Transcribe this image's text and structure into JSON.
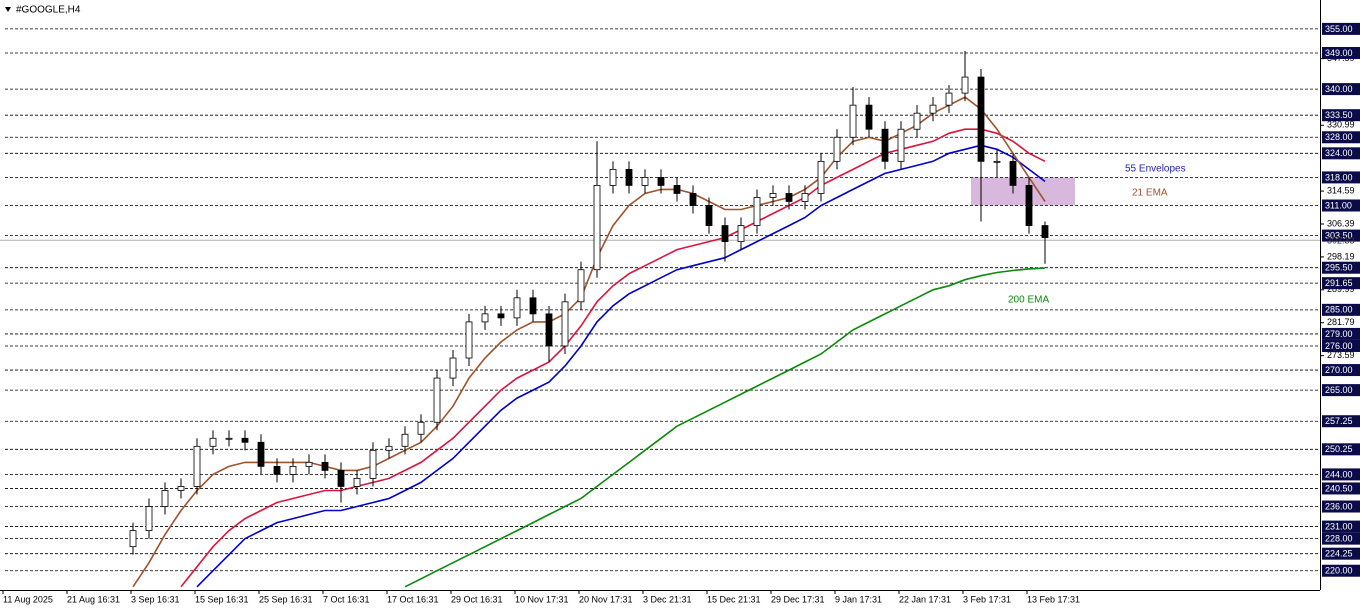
{
  "chart_data": {
    "type": "candlestick",
    "title": "#GOOGLE,H4",
    "x_labels": [
      "11 Aug 2025",
      "21 Aug 16:31",
      "3 Sep 16:31",
      "15 Sep 16:31",
      "25 Sep 16:31",
      "7 Oct 16:31",
      "17 Oct 16:31",
      "29 Oct 16:31",
      "10 Nov 17:31",
      "20 Nov 17:31",
      "3 Dec 21:31",
      "15 Dec 21:31",
      "29 Dec 17:31",
      "9 Jan 17:31",
      "22 Jan 17:31",
      "3 Feb 17:31",
      "13 Feb 17:31"
    ],
    "ylim": [
      215.2,
      362.2
    ],
    "yticks": [
      347.59,
      330.99,
      314.59,
      306.39,
      298.19,
      289.99,
      281.79,
      273.59
    ],
    "levels": [
      {
        "value": 355,
        "label": "355.00"
      },
      {
        "value": 349,
        "label": "349.00"
      },
      {
        "value": 340,
        "label": "340.00"
      },
      {
        "value": 333.5,
        "label": "333.50"
      },
      {
        "value": 328,
        "label": "328.00"
      },
      {
        "value": 324,
        "label": "324.00"
      },
      {
        "value": 318,
        "label": "318.00"
      },
      {
        "value": 311,
        "label": "311.00"
      },
      {
        "value": 303.5,
        "label": "303.50"
      },
      {
        "value": 295.5,
        "label": "295.50"
      },
      291.65,
      {
        "value": 285,
        "label": "285.00"
      },
      {
        "value": 279,
        "label": "279.00"
      },
      {
        "value": 276,
        "label": "276.00"
      },
      {
        "value": 270,
        "label": "270.00"
      },
      {
        "value": 265,
        "label": "265.00"
      },
      257.25,
      250.25,
      {
        "value": 244,
        "label": "244.00"
      },
      {
        "value": 240.5,
        "label": "240.50"
      },
      {
        "value": 236,
        "label": "236.00"
      },
      {
        "value": 231,
        "label": "231.00"
      },
      {
        "value": 228,
        "label": "228.00"
      },
      224.25,
      {
        "value": 220,
        "label": "220.00"
      }
    ],
    "current_price": 302.33,
    "zone": [
      318,
      311
    ],
    "candles": {
      "open": [
        226,
        230,
        236,
        240,
        241,
        251,
        253,
        253,
        252,
        246,
        244,
        246,
        247,
        245,
        241,
        243,
        250,
        251,
        254,
        257,
        268,
        273,
        282,
        284,
        283,
        288,
        284,
        276,
        287,
        295,
        316,
        320,
        316,
        318,
        316,
        314,
        311,
        306,
        302,
        306,
        313,
        314,
        312,
        314,
        322,
        328,
        336,
        330,
        322,
        330,
        334,
        336,
        339,
        343,
        322,
        322,
        316,
        306
      ],
      "high": [
        232,
        238,
        242,
        243,
        253,
        255,
        255,
        255,
        254,
        248,
        248,
        249,
        249,
        247,
        245,
        252,
        253,
        256,
        259,
        270,
        275,
        284,
        286,
        286,
        290,
        290,
        286,
        289,
        297,
        327,
        322,
        322,
        320,
        320,
        318,
        316,
        313,
        308,
        308,
        315,
        316,
        316,
        316,
        324,
        330,
        340.5,
        338,
        332,
        332,
        336,
        338,
        341,
        349.5,
        345,
        325,
        324,
        318,
        307
      ],
      "low": [
        224,
        228,
        234,
        238,
        239,
        249,
        251,
        250,
        244,
        242,
        242,
        244,
        243,
        237,
        239,
        241,
        248,
        249,
        252,
        255,
        266,
        271,
        280,
        281,
        281,
        282,
        272,
        274,
        285,
        293,
        314,
        314,
        314,
        314,
        312,
        309,
        304,
        297,
        300,
        304,
        311,
        310,
        310,
        312,
        320,
        326,
        328,
        320,
        320,
        328,
        332,
        334,
        337,
        307,
        318,
        314,
        304,
        296.5
      ],
      "close": [
        230,
        236,
        240,
        241,
        251,
        253,
        253,
        252,
        246,
        244,
        246,
        247,
        245,
        241,
        243,
        250,
        251,
        254,
        257,
        268,
        273,
        282,
        284,
        283,
        288,
        284,
        276,
        287,
        295,
        316,
        320,
        316,
        318,
        316,
        314,
        311,
        306,
        302,
        306,
        313,
        314,
        312,
        314,
        322,
        328,
        336,
        330,
        322,
        330,
        334,
        336,
        339,
        343,
        322,
        322,
        316,
        306,
        303
      ]
    },
    "indicators": [
      {
        "name": "55 Envelopes",
        "color": "#1f1fa8",
        "bands": [
          {
            "color": "#dc143c",
            "values": [
              null,
              null,
              null,
              216,
              221,
              226,
              230,
              233,
              235,
              237,
              238,
              239,
              240,
              240,
              241,
              242,
              243,
              245,
              247,
              250,
              253,
              257,
              261,
              265,
              268,
              270,
              272,
              276,
              281,
              287,
              291,
              294,
              296,
              298,
              300,
              301,
              302,
              303,
              305,
              307,
              309,
              311,
              313,
              316,
              318,
              320,
              322,
              324,
              325,
              326,
              327,
              329,
              330,
              330,
              329,
              327,
              324,
              322
            ]
          },
          {
            "color": "#0000cd",
            "values": [
              null,
              null,
              null,
              null,
              216,
              220,
              224,
              228,
              230,
              232,
              233,
              234,
              235,
              235,
              236,
              237,
              238,
              240,
              242,
              245,
              248,
              252,
              256,
              260,
              263,
              265,
              267,
              271,
              276,
              282,
              286,
              289,
              291,
              293,
              295,
              296,
              297,
              298,
              300,
              302,
              304,
              306,
              308,
              311,
              313,
              315,
              317,
              319,
              320,
              321,
              322,
              324,
              325,
              326,
              325,
              323,
              320,
              317
            ]
          }
        ]
      },
      {
        "name": "21 EMA",
        "color": "#a0522d",
        "values": [
          216,
          222,
          229,
          235,
          240,
          244,
          246,
          247,
          247,
          247,
          247,
          247,
          246,
          245,
          245,
          246,
          248,
          250,
          252,
          256,
          261,
          268,
          273,
          277,
          280,
          282,
          282,
          284,
          288,
          298,
          306,
          311,
          314,
          315,
          315,
          314,
          312,
          310,
          310,
          311,
          312,
          313,
          315,
          318,
          323,
          327,
          328,
          327,
          329,
          331,
          334,
          336,
          338,
          335,
          330,
          324,
          318,
          312
        ]
      },
      {
        "name": "200 EMA",
        "color": "#0a8a0a",
        "values": [
          null,
          null,
          null,
          null,
          null,
          null,
          null,
          null,
          null,
          null,
          null,
          null,
          null,
          null,
          null,
          null,
          null,
          216,
          218,
          220,
          222,
          224,
          226,
          228,
          230,
          232,
          234,
          236,
          238,
          241,
          244,
          247,
          250,
          253,
          256,
          258,
          260,
          262,
          264,
          266,
          268,
          270,
          272,
          274,
          277,
          280,
          282,
          284,
          286,
          288,
          290,
          291,
          292.5,
          293.5,
          294.3,
          294.8,
          295.2,
          295.4
        ]
      }
    ]
  }
}
